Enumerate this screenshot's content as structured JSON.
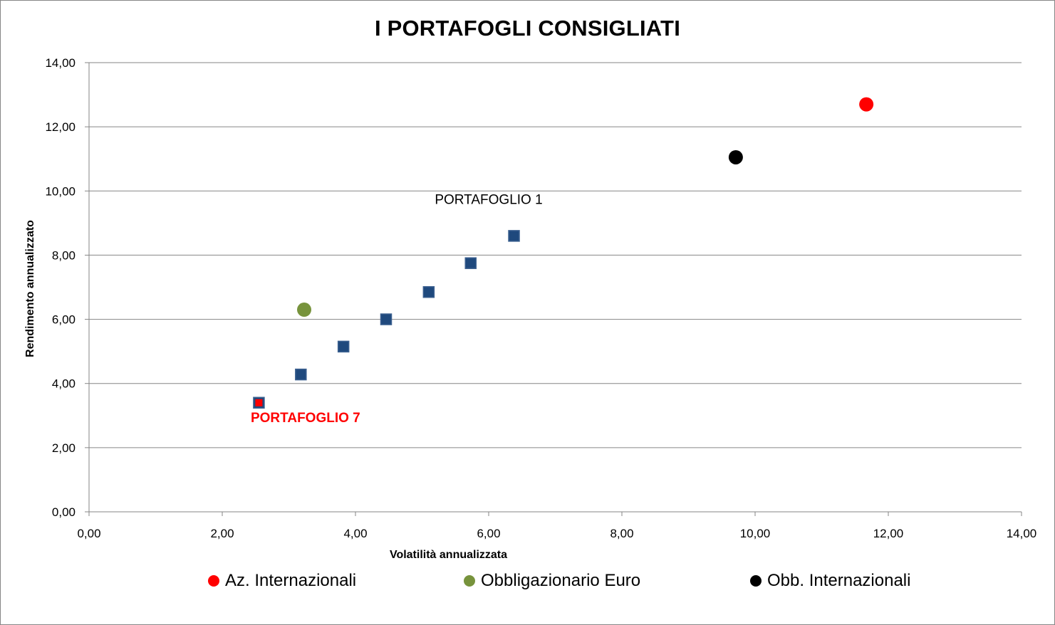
{
  "chart_data": {
    "type": "scatter",
    "title": "I PORTAFOGLI CONSIGLIATI",
    "xlabel": "Volatilità annualizzata",
    "ylabel": "Rendimento annualizzato",
    "xlim": [
      0,
      14
    ],
    "ylim": [
      0,
      14
    ],
    "x_ticks": [
      "0,00",
      "2,00",
      "4,00",
      "6,00",
      "8,00",
      "10,00",
      "12,00",
      "14,00"
    ],
    "y_ticks": [
      "0,00",
      "2,00",
      "4,00",
      "6,00",
      "8,00",
      "10,00",
      "12,00",
      "14,00"
    ],
    "grid": "horizontal",
    "legend_position": "bottom",
    "series": [
      {
        "name": "Az. Internazionali",
        "color": "#ff0000",
        "marker": "circle",
        "points": [
          {
            "x": 11.67,
            "y": 12.7
          }
        ]
      },
      {
        "name": "Obbligazionario Euro",
        "color": "#77933c",
        "marker": "circle",
        "points": [
          {
            "x": 3.23,
            "y": 6.3
          }
        ]
      },
      {
        "name": "Obb. Internazionali",
        "color": "#000000",
        "marker": "circle",
        "points": [
          {
            "x": 9.71,
            "y": 11.05
          }
        ]
      }
    ],
    "portfolios": {
      "color": "#1f497d",
      "marker": "square",
      "points": [
        {
          "x": 6.38,
          "y": 8.6
        },
        {
          "x": 5.73,
          "y": 7.75
        },
        {
          "x": 5.1,
          "y": 6.85
        },
        {
          "x": 4.46,
          "y": 6.0
        },
        {
          "x": 3.82,
          "y": 5.15
        },
        {
          "x": 3.18,
          "y": 4.28
        },
        {
          "x": 2.55,
          "y": 3.4
        }
      ],
      "highlight_index": 6,
      "highlight_color": "#ff0000"
    },
    "annotations": [
      {
        "text": "PORTAFOGLIO 1",
        "color": "#000000",
        "bold": false,
        "anchor_x": 6.0,
        "anchor_y": 9.6
      },
      {
        "text": "PORTAFOGLIO 7",
        "color": "#ff0000",
        "bold": true,
        "anchor_x": 3.25,
        "anchor_y": 2.8
      }
    ]
  }
}
